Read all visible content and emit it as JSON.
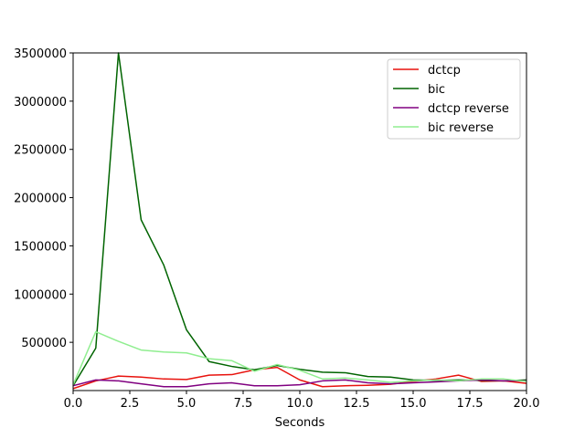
{
  "chart_data": {
    "type": "line",
    "title": "",
    "xlabel": "Seconds",
    "ylabel": "",
    "xlim": [
      0,
      20
    ],
    "ylim": [
      0,
      3500000
    ],
    "xticks": [
      "0.0",
      "2.5",
      "5.0",
      "7.5",
      "10.0",
      "12.5",
      "15.0",
      "17.5",
      "20.0"
    ],
    "yticks": [
      "500000",
      "1000000",
      "1500000",
      "2000000",
      "2500000",
      "3000000",
      "3500000"
    ],
    "grid": false,
    "legend": "top-right",
    "x": [
      0,
      1,
      2,
      3,
      4,
      5,
      6,
      7,
      8,
      9,
      10,
      11,
      12,
      13,
      14,
      15,
      16,
      17,
      18,
      19,
      20
    ],
    "series": [
      {
        "name": "dctcp",
        "color": "#e8120d",
        "values": [
          20000,
          100000,
          150000,
          140000,
          120000,
          115000,
          160000,
          165000,
          215000,
          240000,
          110000,
          40000,
          50000,
          55000,
          65000,
          95000,
          120000,
          160000,
          95000,
          100000,
          75000
        ]
      },
      {
        "name": "bic",
        "color": "#006400",
        "values": [
          50000,
          440000,
          3500000,
          1770000,
          1300000,
          630000,
          300000,
          250000,
          215000,
          260000,
          220000,
          190000,
          185000,
          145000,
          140000,
          110000,
          105000,
          110000,
          105000,
          100000,
          110000
        ]
      },
      {
        "name": "dctcp reverse",
        "color": "#800080",
        "values": [
          50000,
          110000,
          100000,
          70000,
          40000,
          40000,
          70000,
          80000,
          50000,
          50000,
          60000,
          100000,
          110000,
          80000,
          70000,
          80000,
          90000,
          100000,
          110000,
          100000,
          100000
        ]
      },
      {
        "name": "bic reverse",
        "color": "#90ee90",
        "values": [
          60000,
          610000,
          510000,
          420000,
          400000,
          390000,
          330000,
          310000,
          200000,
          270000,
          210000,
          120000,
          130000,
          110000,
          85000,
          100000,
          110000,
          100000,
          120000,
          120000,
          95000
        ]
      }
    ]
  }
}
